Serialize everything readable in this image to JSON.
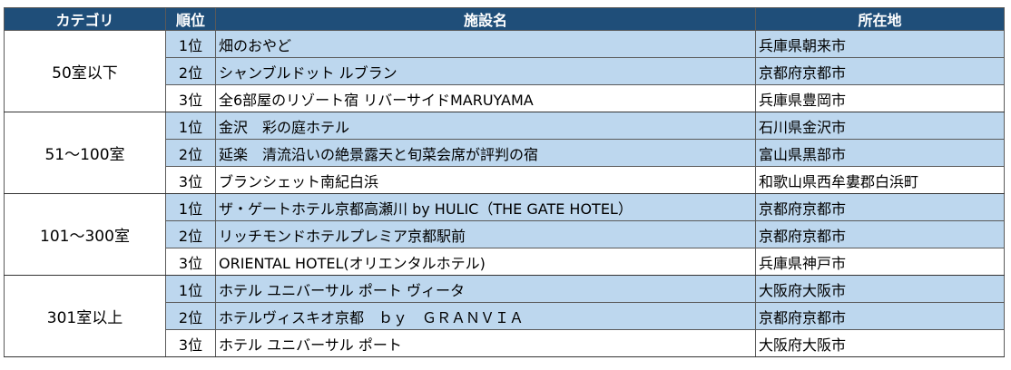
{
  "header": {
    "category": "カテゴリ",
    "rank": "順位",
    "facility": "施設名",
    "location": "所在地"
  },
  "groups": [
    {
      "category": "50室以下",
      "rows": [
        {
          "rank": "1位",
          "name": "畑のおやど",
          "location": "兵庫県朝来市"
        },
        {
          "rank": "2位",
          "name": "シャンブルドット ルブラン",
          "location": "京都府京都市"
        },
        {
          "rank": "3位",
          "name": "全6部屋のリゾート宿 リバーサイドMARUYAMA",
          "location": "兵庫県豊岡市"
        }
      ]
    },
    {
      "category": "51～100室",
      "rows": [
        {
          "rank": "1位",
          "name": "金沢　彩の庭ホテル",
          "location": "石川県金沢市"
        },
        {
          "rank": "2位",
          "name": "延楽　清流沿いの絶景露天と旬菜会席が評判の宿",
          "location": "富山県黒部市"
        },
        {
          "rank": "3位",
          "name": "ブランシェット南紀白浜",
          "location": "和歌山県西牟婁郡白浜町"
        }
      ]
    },
    {
      "category": "101～300室",
      "rows": [
        {
          "rank": "1位",
          "name": "ザ・ゲートホテル京都高瀬川 by HULIC（THE GATE HOTEL）",
          "location": "京都府京都市"
        },
        {
          "rank": "2位",
          "name": "リッチモンドホテルプレミア京都駅前",
          "location": "京都府京都市"
        },
        {
          "rank": "3位",
          "name": "ORIENTAL HOTEL(オリエンタルホテル)",
          "location": "兵庫県神戸市"
        }
      ]
    },
    {
      "category": "301室以上",
      "rows": [
        {
          "rank": "1位",
          "name": "ホテル ユニバーサル ポート ヴィータ",
          "location": "大阪府大阪市"
        },
        {
          "rank": "2位",
          "name": "ホテルヴィスキオ京都　ｂｙ　ＧＲＡＮＶＩＡ",
          "location": "京都府京都市"
        },
        {
          "rank": "3位",
          "name": "ホテル ユニバーサル ポート",
          "location": "大阪府大阪市"
        }
      ]
    }
  ],
  "colors": {
    "header_bg": "#1f4e79",
    "header_text": "#ffffff",
    "shaded_row_bg": "#bdd7ee",
    "border": "#5a5a5a"
  }
}
